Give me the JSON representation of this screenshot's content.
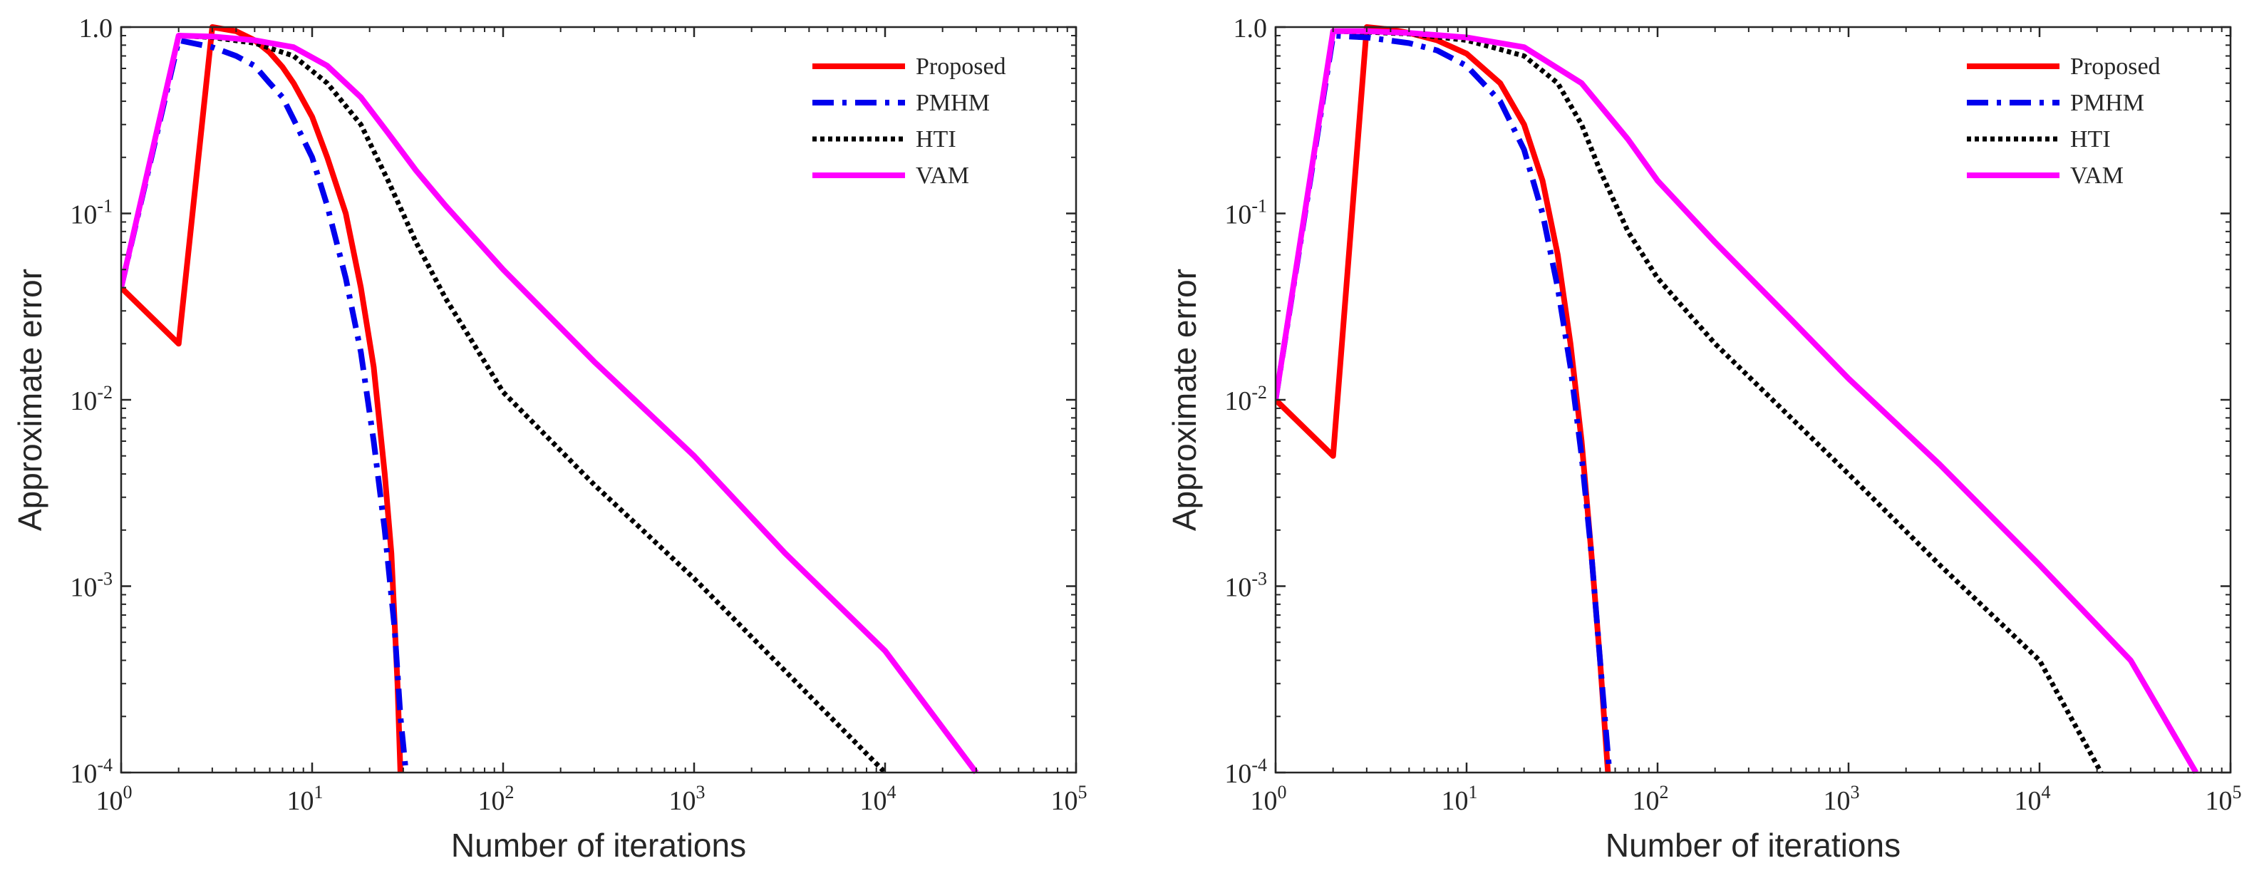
{
  "chart_data": [
    {
      "type": "line",
      "xscale": "log",
      "yscale": "log",
      "xlim": [
        1,
        100000
      ],
      "ylim": [
        0.0001,
        1
      ],
      "xlabel": "Number of iterations",
      "ylabel": "Approximate error",
      "x_ticks": [
        1,
        10,
        100,
        1000,
        10000,
        100000
      ],
      "y_ticks": [
        0.0001,
        0.001,
        0.01,
        0.1,
        1
      ],
      "legend_position": "top-right",
      "series": [
        {
          "name": "Proposed",
          "color": "#ff0000",
          "style": "solid",
          "points": [
            [
              1,
              0.04
            ],
            [
              2,
              0.02
            ],
            [
              3,
              1.0
            ],
            [
              4,
              0.95
            ],
            [
              5,
              0.85
            ],
            [
              6,
              0.73
            ],
            [
              7,
              0.61
            ],
            [
              8,
              0.5
            ],
            [
              10,
              0.33
            ],
            [
              12,
              0.2
            ],
            [
              15,
              0.1
            ],
            [
              18,
              0.04
            ],
            [
              21,
              0.015
            ],
            [
              24,
              0.004
            ],
            [
              26,
              0.0015
            ],
            [
              28,
              0.0003
            ],
            [
              29,
              0.0001
            ]
          ]
        },
        {
          "name": "PMHM",
          "color": "#0000ee",
          "style": "dash-dot",
          "points": [
            [
              1,
              0.04
            ],
            [
              2,
              0.85
            ],
            [
              3,
              0.78
            ],
            [
              4,
              0.7
            ],
            [
              5,
              0.62
            ],
            [
              6,
              0.5
            ],
            [
              7,
              0.42
            ],
            [
              8,
              0.32
            ],
            [
              10,
              0.2
            ],
            [
              12,
              0.11
            ],
            [
              15,
              0.045
            ],
            [
              18,
              0.018
            ],
            [
              21,
              0.006
            ],
            [
              24,
              0.002
            ],
            [
              27,
              0.0006
            ],
            [
              29,
              0.0002
            ],
            [
              31,
              0.0001
            ]
          ]
        },
        {
          "name": "HTI",
          "color": "#000000",
          "style": "dotted",
          "points": [
            [
              1,
              0.04
            ],
            [
              2,
              0.9
            ],
            [
              3,
              0.88
            ],
            [
              5,
              0.82
            ],
            [
              8,
              0.7
            ],
            [
              12,
              0.5
            ],
            [
              18,
              0.3
            ],
            [
              25,
              0.15
            ],
            [
              35,
              0.07
            ],
            [
              50,
              0.035
            ],
            [
              70,
              0.02
            ],
            [
              100,
              0.011
            ],
            [
              300,
              0.0035
            ],
            [
              1000,
              0.0011
            ],
            [
              3000,
              0.00035
            ],
            [
              10000,
              0.0001
            ]
          ]
        },
        {
          "name": "VAM",
          "color": "#ff00ff",
          "style": "solid",
          "points": [
            [
              1,
              0.04
            ],
            [
              2,
              0.9
            ],
            [
              3,
              0.89
            ],
            [
              5,
              0.85
            ],
            [
              8,
              0.78
            ],
            [
              12,
              0.62
            ],
            [
              18,
              0.42
            ],
            [
              25,
              0.27
            ],
            [
              35,
              0.17
            ],
            [
              50,
              0.11
            ],
            [
              70,
              0.075
            ],
            [
              100,
              0.05
            ],
            [
              300,
              0.016
            ],
            [
              1000,
              0.005
            ],
            [
              3000,
              0.0015
            ],
            [
              10000,
              0.00045
            ],
            [
              30000,
              0.0001
            ]
          ]
        }
      ]
    },
    {
      "type": "line",
      "xscale": "log",
      "yscale": "log",
      "xlim": [
        1,
        100000
      ],
      "ylim": [
        0.0001,
        1
      ],
      "xlabel": "Number of iterations",
      "ylabel": "Approximate error",
      "x_ticks": [
        1,
        10,
        100,
        1000,
        10000,
        100000
      ],
      "y_ticks": [
        0.0001,
        0.001,
        0.01,
        0.1,
        1
      ],
      "legend_position": "top-right",
      "series": [
        {
          "name": "Proposed",
          "color": "#ff0000",
          "style": "solid",
          "points": [
            [
              1,
              0.01
            ],
            [
              2,
              0.005
            ],
            [
              3,
              1.0
            ],
            [
              4,
              0.97
            ],
            [
              5,
              0.93
            ],
            [
              7,
              0.85
            ],
            [
              10,
              0.72
            ],
            [
              15,
              0.5
            ],
            [
              20,
              0.3
            ],
            [
              25,
              0.15
            ],
            [
              30,
              0.06
            ],
            [
              35,
              0.02
            ],
            [
              40,
              0.006
            ],
            [
              45,
              0.0015
            ],
            [
              50,
              0.0004
            ],
            [
              55,
              0.0001
            ]
          ]
        },
        {
          "name": "PMHM",
          "color": "#0000ee",
          "style": "dash-dot",
          "points": [
            [
              1,
              0.01
            ],
            [
              2,
              0.9
            ],
            [
              3,
              0.88
            ],
            [
              5,
              0.82
            ],
            [
              7,
              0.75
            ],
            [
              10,
              0.62
            ],
            [
              15,
              0.4
            ],
            [
              20,
              0.22
            ],
            [
              25,
              0.1
            ],
            [
              30,
              0.04
            ],
            [
              35,
              0.015
            ],
            [
              40,
              0.005
            ],
            [
              45,
              0.0015
            ],
            [
              50,
              0.0004
            ],
            [
              56,
              0.0001
            ]
          ]
        },
        {
          "name": "HTI",
          "color": "#000000",
          "style": "dotted",
          "points": [
            [
              1,
              0.01
            ],
            [
              2,
              0.95
            ],
            [
              3,
              0.94
            ],
            [
              5,
              0.92
            ],
            [
              10,
              0.85
            ],
            [
              20,
              0.7
            ],
            [
              30,
              0.5
            ],
            [
              40,
              0.3
            ],
            [
              50,
              0.17
            ],
            [
              70,
              0.08
            ],
            [
              100,
              0.045
            ],
            [
              200,
              0.02
            ],
            [
              500,
              0.008
            ],
            [
              1000,
              0.004
            ],
            [
              3000,
              0.0013
            ],
            [
              10000,
              0.0004
            ],
            [
              21000,
              0.0001
            ]
          ]
        },
        {
          "name": "VAM",
          "color": "#ff00ff",
          "style": "solid",
          "points": [
            [
              1,
              0.01
            ],
            [
              2,
              0.95
            ],
            [
              3,
              0.95
            ],
            [
              5,
              0.93
            ],
            [
              10,
              0.88
            ],
            [
              20,
              0.78
            ],
            [
              40,
              0.5
            ],
            [
              70,
              0.25
            ],
            [
              100,
              0.15
            ],
            [
              200,
              0.07
            ],
            [
              500,
              0.027
            ],
            [
              1000,
              0.013
            ],
            [
              3000,
              0.0045
            ],
            [
              10000,
              0.0013
            ],
            [
              30000,
              0.0004
            ],
            [
              66000,
              0.0001
            ]
          ]
        }
      ]
    }
  ]
}
